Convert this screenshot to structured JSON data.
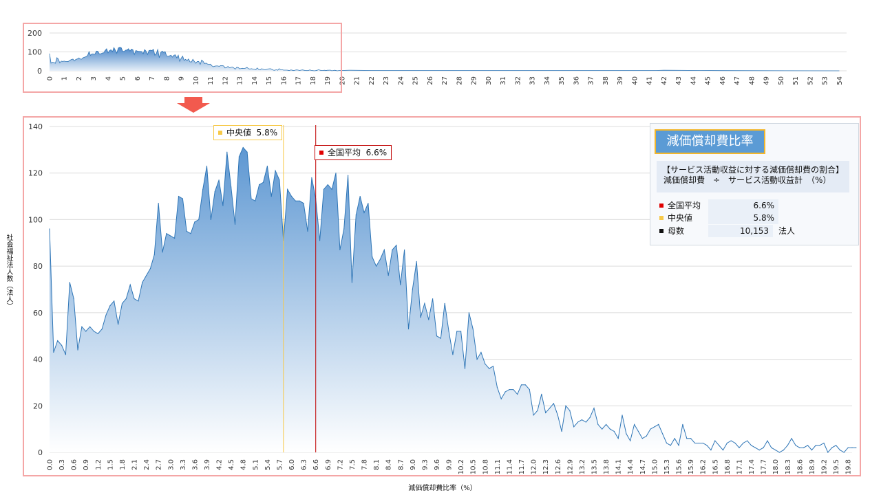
{
  "chart_data": [
    {
      "type": "area",
      "xlabel": "",
      "ylabel": "",
      "xlim": [
        0,
        54.5
      ],
      "ylim": [
        0,
        200
      ],
      "y_ticks": [
        0,
        100,
        200
      ],
      "x_ticks": [
        "0",
        "1",
        "2",
        "3",
        "4",
        "5",
        "6",
        "7",
        "8",
        "9",
        "10",
        "11",
        "12",
        "13",
        "14",
        "15",
        "16",
        "17",
        "18",
        "19",
        "20",
        "21",
        "22",
        "23",
        "24",
        "25",
        "26",
        "27",
        "28",
        "29",
        "30",
        "31",
        "32",
        "33",
        "34",
        "35",
        "36",
        "37",
        "38",
        "39",
        "40",
        "41",
        "42",
        "43",
        "44",
        "45",
        "46",
        "47",
        "48",
        "49",
        "50",
        "51",
        "52",
        "53",
        "54"
      ],
      "grid": true,
      "note_color": "#5b9bd5"
    },
    {
      "type": "area",
      "xlabel": "減価償却費比率（%）",
      "ylabel": "社会福祉法人数（法人）",
      "xlim": [
        0,
        19.9
      ],
      "ylim": [
        0,
        140
      ],
      "y_ticks": [
        0,
        20,
        40,
        60,
        80,
        100,
        120,
        140
      ],
      "x_ticks": [
        "0.0",
        "0.3",
        "0.6",
        "0.9",
        "1.2",
        "1.5",
        "1.8",
        "2.1",
        "2.4",
        "2.7",
        "3.0",
        "3.3",
        "3.6",
        "3.9",
        "4.2",
        "4.5",
        "4.8",
        "5.1",
        "5.4",
        "5.7",
        "6.0",
        "6.3",
        "6.6",
        "6.9",
        "7.2",
        "7.5",
        "7.8",
        "8.1",
        "8.4",
        "8.7",
        "9.0",
        "9.3",
        "9.6",
        "9.9",
        "10.2",
        "10.5",
        "10.8",
        "11.1",
        "11.4",
        "11.7",
        "12.0",
        "12.3",
        "12.6",
        "12.9",
        "13.2",
        "13.5",
        "13.8",
        "14.1",
        "14.4",
        "14.7",
        "15.0",
        "15.3",
        "15.6",
        "15.9",
        "16.2",
        "16.5",
        "16.8",
        "17.1",
        "17.4",
        "17.7",
        "18.0",
        "18.3",
        "18.6",
        "18.9",
        "19.2",
        "19.5",
        "19.8"
      ],
      "grid": true,
      "series": [
        {
          "values": [
            96,
            43,
            48,
            46,
            42,
            73,
            66,
            44,
            54,
            52,
            54,
            52,
            51,
            53,
            59,
            63,
            65,
            55,
            64,
            66,
            72,
            66,
            65,
            73,
            76,
            79,
            85,
            107,
            86,
            94,
            93,
            92,
            110,
            109,
            95,
            94,
            99,
            100,
            113,
            123,
            100,
            112,
            117,
            106,
            129,
            114,
            98,
            127,
            131,
            129,
            109,
            108,
            115,
            116,
            123,
            110,
            121,
            117,
            91,
            113,
            110,
            108,
            108,
            107,
            95,
            118,
            109,
            91,
            113,
            115,
            113,
            120,
            87,
            96,
            119,
            73,
            102,
            110,
            103,
            107,
            84,
            80,
            83,
            87,
            76,
            87,
            89,
            72,
            87,
            53,
            70,
            82,
            58,
            64,
            57,
            66,
            50,
            49,
            64,
            52,
            42,
            52,
            52,
            36,
            60,
            53,
            40,
            43,
            38,
            36,
            37,
            28,
            23,
            26,
            27,
            27,
            25,
            29,
            29,
            27,
            16,
            18,
            25,
            17,
            19,
            21,
            16,
            9,
            20,
            18,
            11,
            13,
            14,
            13,
            15,
            19,
            12,
            10,
            12,
            10,
            9,
            6,
            16,
            8,
            5,
            12,
            9,
            6,
            7,
            10,
            11,
            12,
            8,
            4,
            3,
            6,
            3,
            12,
            6,
            6,
            4,
            4,
            4,
            3,
            1,
            5,
            3,
            1,
            4,
            5,
            4,
            2,
            4,
            5,
            3,
            2,
            1,
            2,
            5,
            2,
            1,
            0,
            1,
            3,
            6,
            3,
            2,
            2,
            3,
            1,
            3,
            3,
            4,
            0,
            2,
            3,
            1,
            0,
            2,
            2,
            2
          ]
        }
      ],
      "markers": [
        {
          "name": "中央値",
          "value": 5.8,
          "label": "5.8%",
          "color": "#f7c948"
        },
        {
          "name": "全国平均",
          "value": 6.6,
          "label": "6.6%",
          "color": "#c00000"
        }
      ]
    }
  ],
  "legend": {
    "title": "減価償却費比率",
    "desc_line1": "【サービス活動収益に対する減価償却費の割合】",
    "desc_line2": "減価償却費　÷　サービス活動収益計　（%）",
    "rows": [
      {
        "label": "全国平均",
        "value": "6.6%",
        "unit": "",
        "color": "#e00000"
      },
      {
        "label": "中央値",
        "value": "5.8%",
        "unit": "",
        "color": "#f7c948"
      },
      {
        "label": "母数",
        "value": "10,153",
        "unit": "法人",
        "color": "#111111"
      }
    ]
  },
  "colors": {
    "area_top": "#5b9bd5",
    "area_bottom": "#ffffff",
    "frame": "#f4a6a6",
    "arrow": "#f25a4e"
  }
}
